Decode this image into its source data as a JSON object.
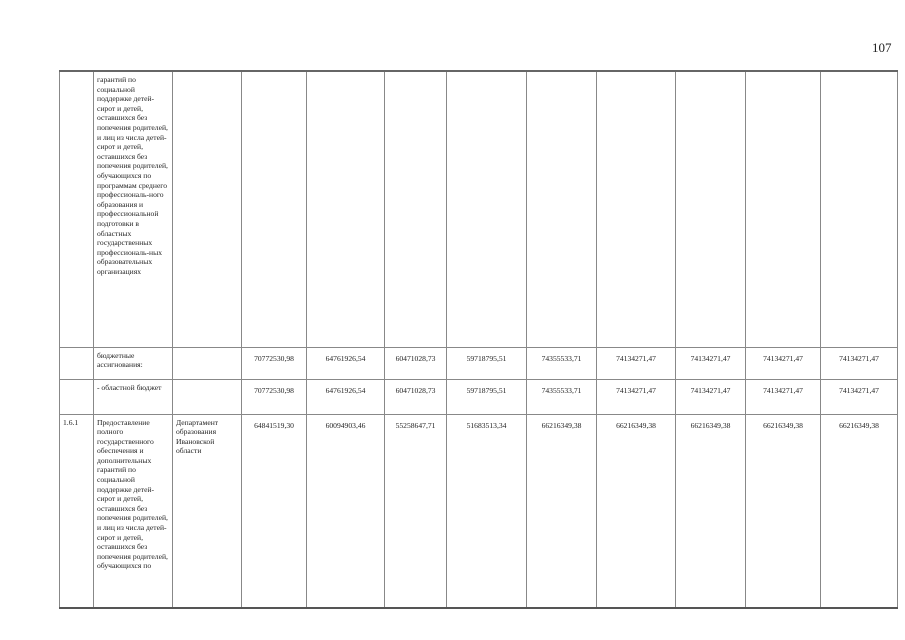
{
  "page_number": "107",
  "rows": [
    {
      "num": "",
      "name": "гарантий по социальной поддержке детей-сирот и детей, оставшихся без попечения родителей, и лиц из числа детей-сирот и детей, оставшихся без попечения родителей, обучающихся по программам среднего профессиональ-ного образования и профессиональной подготовки в областных государственных профессиональ-ных образовательных организациях",
      "exec": "",
      "values": [
        "",
        "",
        "",
        "",
        "",
        "",
        "",
        "",
        ""
      ]
    },
    {
      "num": "",
      "name": "бюджетные ассигнования:",
      "exec": "",
      "values": [
        "70772530,98",
        "64761926,54",
        "60471028,73",
        "59718795,51",
        "74355533,71",
        "74134271,47",
        "74134271,47",
        "74134271,47",
        "74134271,47"
      ]
    },
    {
      "num": "",
      "name": "- областной бюджет",
      "exec": "",
      "values": [
        "70772530,98",
        "64761926,54",
        "60471028,73",
        "59718795,51",
        "74355533,71",
        "74134271,47",
        "74134271,47",
        "74134271,47",
        "74134271,47"
      ]
    },
    {
      "num": "1.6.1",
      "name": "Предоставление полного государственного обеспечения и дополнительных гарантий по социальной поддержке детей-сирот и детей, оставшихся без попечения родителей, и лиц из числа детей-сирот и детей, оставшихся без попечения родителей, обучающихся по",
      "exec": "Департамент образования Ивановской области",
      "values": [
        "64841519,30",
        "60094903,46",
        "55258647,71",
        "51683513,34",
        "66216349,38",
        "66216349,38",
        "66216349,38",
        "66216349,38",
        "66216349,38"
      ]
    }
  ]
}
